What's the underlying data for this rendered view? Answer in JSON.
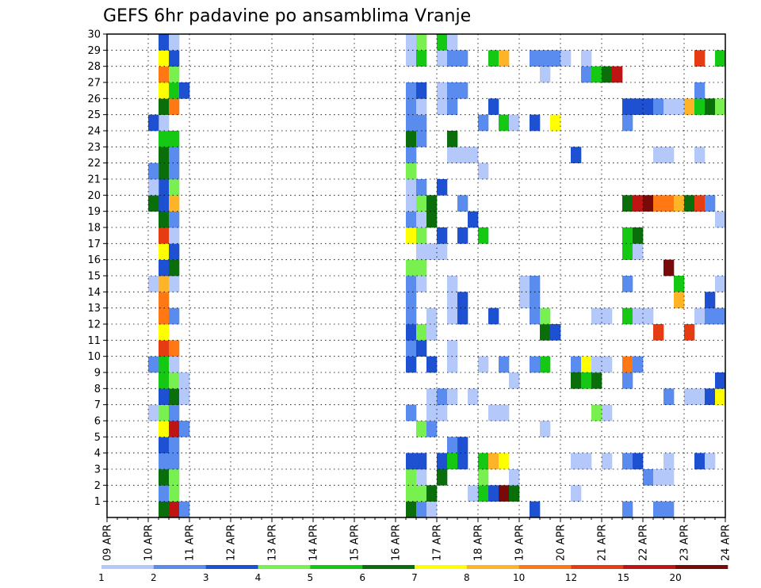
{
  "chart_data": {
    "type": "heatmap",
    "title": "GEFS 6hr padavine po ansamblima Vranje",
    "xlabel": "",
    "ylabel": "",
    "x_ticks": [
      "09 APR",
      "10 APR",
      "11 APR",
      "12 APR",
      "13 APR",
      "14 APR",
      "15 APR",
      "16 APR",
      "17 APR",
      "18 APR",
      "19 APR",
      "20 APR",
      "21 APR",
      "22 APR",
      "23 APR",
      "24 APR"
    ],
    "y_ticks": [
      "1",
      "2",
      "3",
      "4",
      "5",
      "6",
      "7",
      "8",
      "9",
      "10",
      "11",
      "12",
      "13",
      "14",
      "15",
      "16",
      "17",
      "18",
      "19",
      "20",
      "21",
      "22",
      "23",
      "24",
      "25",
      "26",
      "27",
      "28",
      "29",
      "30"
    ],
    "x_range": [
      0,
      60
    ],
    "y_range": [
      0,
      30
    ],
    "x_unit": "6-hour steps from 09 APR 00 UTC",
    "grid": true,
    "colorbar": {
      "levels": [
        "1",
        "2",
        "3",
        "4",
        "5",
        "6",
        "7",
        "8",
        "10",
        "12",
        "15",
        "20"
      ],
      "colors": [
        "#b4c8fa",
        "#5a8cf0",
        "#1e50d2",
        "#78f050",
        "#14c814",
        "#0a6e0a",
        "#ffff00",
        "#ffb428",
        "#ff7814",
        "#e63c14",
        "#be1414",
        "#780a0a"
      ]
    },
    "cells": [
      [
        5,
        0,
        6
      ],
      [
        5,
        1,
        2
      ],
      [
        5,
        2,
        6
      ],
      [
        5,
        3,
        2
      ],
      [
        5,
        4,
        3
      ],
      [
        5,
        5,
        7
      ],
      [
        5,
        6,
        4
      ],
      [
        5,
        7,
        3
      ],
      [
        5,
        8,
        5
      ],
      [
        5,
        9,
        5
      ],
      [
        5,
        10,
        10
      ],
      [
        5,
        11,
        7
      ],
      [
        5,
        12,
        9
      ],
      [
        5,
        13,
        9
      ],
      [
        5,
        14,
        8
      ],
      [
        5,
        15,
        3
      ],
      [
        5,
        16,
        7
      ],
      [
        5,
        17,
        10
      ],
      [
        5,
        18,
        6
      ],
      [
        5,
        19,
        3
      ],
      [
        5,
        20,
        3
      ],
      [
        5,
        21,
        6
      ],
      [
        5,
        22,
        6
      ],
      [
        5,
        23,
        5
      ],
      [
        5,
        24,
        1
      ],
      [
        5,
        25,
        6
      ],
      [
        5,
        26,
        7
      ],
      [
        5,
        27,
        9
      ],
      [
        5,
        28,
        7
      ],
      [
        5,
        29,
        3
      ],
      [
        6,
        0,
        11
      ],
      [
        6,
        1,
        4
      ],
      [
        6,
        2,
        4
      ],
      [
        6,
        3,
        2
      ],
      [
        6,
        4,
        2
      ],
      [
        6,
        5,
        11
      ],
      [
        6,
        6,
        2
      ],
      [
        6,
        7,
        6
      ],
      [
        6,
        8,
        4
      ],
      [
        6,
        9,
        1
      ],
      [
        6,
        10,
        9
      ],
      [
        6,
        12,
        2
      ],
      [
        6,
        14,
        1
      ],
      [
        6,
        15,
        6
      ],
      [
        6,
        16,
        3
      ],
      [
        6,
        17,
        1
      ],
      [
        6,
        18,
        2
      ],
      [
        6,
        19,
        8
      ],
      [
        6,
        20,
        4
      ],
      [
        6,
        21,
        2
      ],
      [
        6,
        22,
        2
      ],
      [
        6,
        23,
        5
      ],
      [
        6,
        25,
        9
      ],
      [
        6,
        26,
        5
      ],
      [
        6,
        27,
        4
      ],
      [
        6,
        28,
        3
      ],
      [
        6,
        29,
        1
      ],
      [
        4,
        24,
        3
      ],
      [
        4,
        19,
        6
      ],
      [
        4,
        20,
        1
      ],
      [
        4,
        21,
        2
      ],
      [
        4,
        9,
        2
      ],
      [
        4,
        6,
        1
      ],
      [
        4,
        14,
        1
      ],
      [
        7,
        0,
        2
      ],
      [
        7,
        5,
        2
      ],
      [
        7,
        7,
        1
      ],
      [
        7,
        8,
        1
      ],
      [
        7,
        26,
        3
      ],
      [
        29,
        0,
        6
      ],
      [
        29,
        1,
        4
      ],
      [
        29,
        2,
        4
      ],
      [
        29,
        3,
        3
      ],
      [
        29,
        6,
        2
      ],
      [
        29,
        9,
        3
      ],
      [
        29,
        10,
        2
      ],
      [
        29,
        11,
        3
      ],
      [
        29,
        12,
        2
      ],
      [
        29,
        13,
        2
      ],
      [
        29,
        14,
        2
      ],
      [
        29,
        15,
        4
      ],
      [
        29,
        17,
        7
      ],
      [
        29,
        18,
        2
      ],
      [
        29,
        19,
        1
      ],
      [
        29,
        20,
        1
      ],
      [
        29,
        21,
        4
      ],
      [
        29,
        22,
        2
      ],
      [
        29,
        23,
        6
      ],
      [
        29,
        24,
        2
      ],
      [
        29,
        25,
        2
      ],
      [
        29,
        26,
        2
      ],
      [
        29,
        28,
        1
      ],
      [
        29,
        29,
        1
      ],
      [
        30,
        0,
        2
      ],
      [
        30,
        1,
        4
      ],
      [
        30,
        2,
        1
      ],
      [
        30,
        3,
        3
      ],
      [
        30,
        5,
        4
      ],
      [
        30,
        10,
        3
      ],
      [
        30,
        11,
        4
      ],
      [
        30,
        14,
        1
      ],
      [
        30,
        15,
        4
      ],
      [
        30,
        16,
        1
      ],
      [
        30,
        17,
        4
      ],
      [
        30,
        18,
        1
      ],
      [
        30,
        19,
        4
      ],
      [
        30,
        20,
        2
      ],
      [
        30,
        23,
        2
      ],
      [
        30,
        24,
        2
      ],
      [
        30,
        25,
        1
      ],
      [
        30,
        26,
        3
      ],
      [
        30,
        28,
        5
      ],
      [
        30,
        29,
        4
      ],
      [
        31,
        0,
        1
      ],
      [
        31,
        1,
        6
      ],
      [
        31,
        5,
        2
      ],
      [
        31,
        6,
        1
      ],
      [
        31,
        7,
        1
      ],
      [
        31,
        9,
        3
      ],
      [
        31,
        11,
        1
      ],
      [
        31,
        12,
        1
      ],
      [
        31,
        16,
        1
      ],
      [
        31,
        18,
        6
      ],
      [
        31,
        19,
        6
      ],
      [
        32,
        2,
        6
      ],
      [
        32,
        3,
        3
      ],
      [
        32,
        6,
        1
      ],
      [
        32,
        7,
        2
      ],
      [
        32,
        16,
        1
      ],
      [
        32,
        17,
        3
      ],
      [
        32,
        20,
        3
      ],
      [
        32,
        28,
        1
      ],
      [
        32,
        25,
        1
      ],
      [
        32,
        26,
        1
      ],
      [
        32,
        29,
        5
      ],
      [
        33,
        3,
        5
      ],
      [
        33,
        4,
        2
      ],
      [
        33,
        7,
        1
      ],
      [
        33,
        9,
        1
      ],
      [
        33,
        10,
        1
      ],
      [
        33,
        12,
        1
      ],
      [
        33,
        13,
        1
      ],
      [
        33,
        14,
        1
      ],
      [
        33,
        22,
        1
      ],
      [
        33,
        23,
        6
      ],
      [
        33,
        25,
        2
      ],
      [
        33,
        26,
        2
      ],
      [
        33,
        28,
        2
      ],
      [
        33,
        29,
        1
      ],
      [
        34,
        3,
        3
      ],
      [
        34,
        4,
        3
      ],
      [
        34,
        12,
        3
      ],
      [
        34,
        13,
        3
      ],
      [
        34,
        22,
        1
      ],
      [
        34,
        26,
        2
      ],
      [
        34,
        28,
        2
      ],
      [
        34,
        17,
        3
      ],
      [
        34,
        19,
        2
      ],
      [
        35,
        1,
        1
      ],
      [
        35,
        7,
        1
      ],
      [
        35,
        18,
        3
      ],
      [
        35,
        22,
        1
      ],
      [
        36,
        1,
        5
      ],
      [
        36,
        2,
        4
      ],
      [
        36,
        3,
        5
      ],
      [
        36,
        17,
        5
      ],
      [
        36,
        24,
        2
      ],
      [
        36,
        21,
        1
      ],
      [
        36,
        9,
        1
      ],
      [
        37,
        1,
        3
      ],
      [
        37,
        3,
        8
      ],
      [
        37,
        6,
        1
      ],
      [
        37,
        12,
        3
      ],
      [
        37,
        25,
        3
      ],
      [
        37,
        28,
        5
      ],
      [
        38,
        1,
        12
      ],
      [
        38,
        3,
        7
      ],
      [
        38,
        6,
        1
      ],
      [
        38,
        9,
        2
      ],
      [
        38,
        24,
        5
      ],
      [
        38,
        28,
        8
      ],
      [
        39,
        1,
        6
      ],
      [
        39,
        2,
        1
      ],
      [
        39,
        8,
        1
      ],
      [
        39,
        24,
        1
      ],
      [
        40,
        13,
        1
      ],
      [
        40,
        14,
        1
      ],
      [
        41,
        0,
        3
      ],
      [
        41,
        9,
        2
      ],
      [
        41,
        12,
        2
      ],
      [
        41,
        13,
        2
      ],
      [
        41,
        14,
        2
      ],
      [
        41,
        24,
        3
      ],
      [
        41,
        28,
        2
      ],
      [
        42,
        5,
        1
      ],
      [
        42,
        9,
        5
      ],
      [
        42,
        11,
        6
      ],
      [
        42,
        12,
        4
      ],
      [
        42,
        27,
        1
      ],
      [
        42,
        28,
        2
      ],
      [
        43,
        11,
        3
      ],
      [
        43,
        24,
        7
      ],
      [
        43,
        28,
        2
      ],
      [
        44,
        28,
        1
      ],
      [
        45,
        3,
        1
      ],
      [
        45,
        9,
        2
      ],
      [
        45,
        8,
        6
      ],
      [
        45,
        1,
        1
      ],
      [
        45,
        22,
        3
      ],
      [
        46,
        3,
        1
      ],
      [
        46,
        9,
        7
      ],
      [
        46,
        8,
        5
      ],
      [
        46,
        27,
        2
      ],
      [
        46,
        28,
        1
      ],
      [
        47,
        8,
        6
      ],
      [
        47,
        27,
        5
      ],
      [
        47,
        12,
        1
      ],
      [
        47,
        9,
        1
      ],
      [
        47,
        6,
        4
      ],
      [
        48,
        6,
        1
      ],
      [
        48,
        9,
        1
      ],
      [
        48,
        3,
        1
      ],
      [
        48,
        12,
        1
      ],
      [
        48,
        27,
        6
      ],
      [
        49,
        27,
        11
      ],
      [
        50,
        0,
        2
      ],
      [
        50,
        3,
        2
      ],
      [
        50,
        8,
        2
      ],
      [
        50,
        9,
        9
      ],
      [
        50,
        12,
        5
      ],
      [
        50,
        14,
        2
      ],
      [
        50,
        16,
        5
      ],
      [
        50,
        17,
        5
      ],
      [
        50,
        19,
        6
      ],
      [
        50,
        24,
        2
      ],
      [
        50,
        25,
        3
      ],
      [
        51,
        3,
        3
      ],
      [
        51,
        9,
        2
      ],
      [
        51,
        12,
        1
      ],
      [
        51,
        16,
        1
      ],
      [
        51,
        17,
        6
      ],
      [
        51,
        19,
        11
      ],
      [
        51,
        25,
        3
      ],
      [
        52,
        2,
        2
      ],
      [
        52,
        12,
        1
      ],
      [
        52,
        19,
        12
      ],
      [
        52,
        25,
        3
      ],
      [
        53,
        0,
        2
      ],
      [
        53,
        2,
        1
      ],
      [
        53,
        11,
        10
      ],
      [
        53,
        22,
        1
      ],
      [
        53,
        19,
        9
      ],
      [
        53,
        25,
        2
      ],
      [
        54,
        0,
        2
      ],
      [
        54,
        2,
        1
      ],
      [
        54,
        7,
        1
      ],
      [
        54,
        19,
        9
      ],
      [
        54,
        15,
        12
      ],
      [
        54,
        22,
        1
      ],
      [
        54,
        25,
        1
      ],
      [
        54,
        3,
        1
      ],
      [
        54,
        7,
        2
      ],
      [
        55,
        14,
        5
      ],
      [
        55,
        13,
        8
      ],
      [
        55,
        19,
        8
      ],
      [
        55,
        25,
        1
      ],
      [
        56,
        7,
        1
      ],
      [
        56,
        11,
        10
      ],
      [
        56,
        19,
        6
      ],
      [
        56,
        25,
        8
      ],
      [
        57,
        7,
        1
      ],
      [
        57,
        12,
        1
      ],
      [
        57,
        19,
        10
      ],
      [
        57,
        22,
        1
      ],
      [
        57,
        25,
        5
      ],
      [
        57,
        28,
        10
      ],
      [
        57,
        26,
        2
      ],
      [
        57,
        3,
        3
      ],
      [
        58,
        3,
        1
      ],
      [
        58,
        7,
        3
      ],
      [
        58,
        12,
        2
      ],
      [
        58,
        13,
        3
      ],
      [
        58,
        19,
        2
      ],
      [
        58,
        25,
        6
      ],
      [
        59,
        7,
        7
      ],
      [
        59,
        8,
        3
      ],
      [
        59,
        12,
        2
      ],
      [
        59,
        14,
        1
      ],
      [
        59,
        18,
        1
      ],
      [
        59,
        25,
        4
      ],
      [
        59,
        28,
        5
      ],
      [
        60,
        7,
        3
      ],
      [
        60,
        9,
        3
      ],
      [
        60,
        13,
        1
      ],
      [
        60,
        28,
        2
      ]
    ]
  }
}
